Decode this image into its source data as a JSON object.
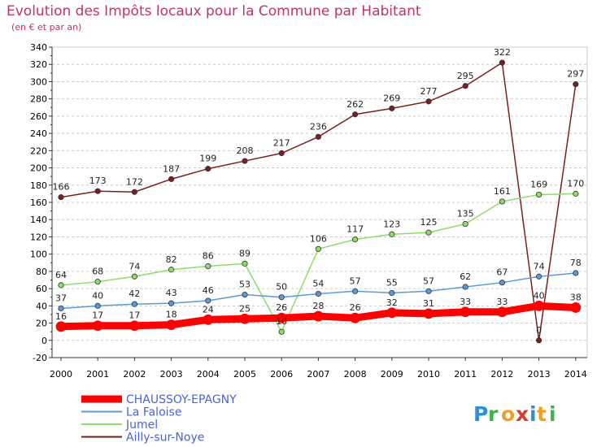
{
  "chart_data": {
    "type": "line",
    "title": "Evolution des Impôts locaux pour la Commune par Habitant",
    "subtitle": "(en € et par an)",
    "x": [
      "2000",
      "2001",
      "2002",
      "2003",
      "2004",
      "2005",
      "2006",
      "2007",
      "2008",
      "2009",
      "2010",
      "2011",
      "2012",
      "2013",
      "2014"
    ],
    "ylim": [
      -20,
      340
    ],
    "yticks": [
      -20,
      0,
      20,
      40,
      60,
      80,
      100,
      120,
      140,
      160,
      180,
      200,
      220,
      240,
      260,
      280,
      300,
      320,
      340
    ],
    "grid": "horizontal-dashed",
    "legend_position": "bottom-left",
    "series": [
      {
        "name": "Ailly-sur-Noye",
        "color": "#7a1f1f",
        "values": [
          166,
          173,
          172,
          187,
          199,
          208,
          217,
          236,
          262,
          269,
          277,
          295,
          322,
          0,
          297
        ]
      },
      {
        "name": "Jumel",
        "color": "#8fdc6a",
        "values": [
          64,
          68,
          74,
          82,
          86,
          89,
          10,
          106,
          117,
          123,
          125,
          135,
          161,
          169,
          170
        ]
      },
      {
        "name": "La Faloise",
        "color": "#5b9bd5",
        "values": [
          37,
          40,
          42,
          43,
          46,
          53,
          50,
          54,
          57,
          55,
          57,
          62,
          67,
          74,
          78
        ]
      },
      {
        "name": "CHAUSSOY-EPAGNY",
        "color": "#ff0000",
        "values": [
          16,
          17,
          17,
          18,
          24,
          25,
          26,
          28,
          26,
          32,
          31,
          33,
          33,
          40,
          38
        ]
      }
    ]
  },
  "legend": {
    "items": [
      {
        "label": "CHAUSSOY-EPAGNY",
        "color": "#ff0000"
      },
      {
        "label": "La Faloise",
        "color": "#5b9bd5"
      },
      {
        "label": "Jumel",
        "color": "#8fdc6a"
      },
      {
        "label": "Ailly-sur-Noye",
        "color": "#7a1f1f"
      }
    ]
  },
  "branding": {
    "logo_text": "Proxiti",
    "colors": {
      "title": "#c0336b",
      "axis": "#333333",
      "grid": "#cccccc",
      "legend_text": "#4a63d8"
    }
  }
}
